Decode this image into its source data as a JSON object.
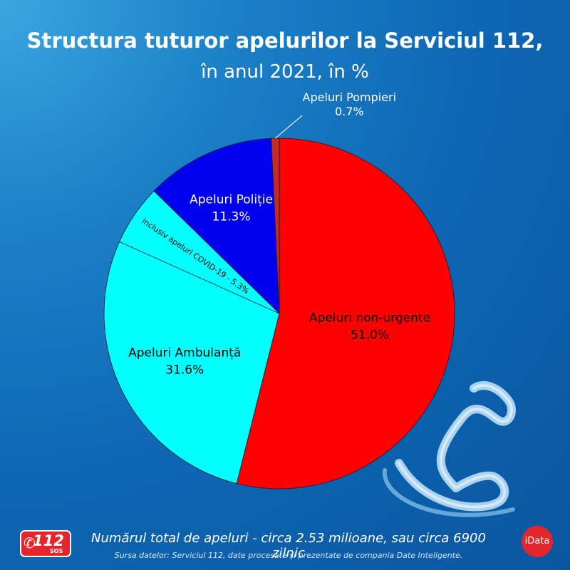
{
  "title_line1": "Structura tuturor apelurilor la Serviciul 112,",
  "title_line2": "în anul 2021, în %",
  "chart_data": {
    "type": "pie",
    "slices": [
      {
        "label": "Apeluri non-urgente",
        "value": 51.0,
        "value_label": "51.0%",
        "color": "#ff0000",
        "text_color": "#000000"
      },
      {
        "label": "Apeluri Ambulanță",
        "value": 31.6,
        "value_label": "31.6%",
        "color": "#00ffff",
        "text_color": "#000000"
      },
      {
        "label": "Apeluri Poliție",
        "value": 11.3,
        "value_label": "11.3%",
        "color": "#0000ee",
        "text_color": "#ffffff"
      },
      {
        "label": "Apeluri Pompieri",
        "value": 0.7,
        "value_label": "0.7%",
        "color": "#c22a2a",
        "text_color": "#ffffff"
      }
    ],
    "sub_segment": {
      "label": "inclusiv apeluri COVID-19 - 5.3%",
      "value": 5.3,
      "within": "Apeluri Ambulanță"
    }
  },
  "footer": {
    "total_text": "Numărul total de apeluri - circa 2.53 milioane, sau circa 6900 zilnic",
    "source_text": "Sursa datelor: Serviciul 112, date procesate și prezentate de compania Date Inteligente."
  },
  "logos": {
    "logo_112_number": "112",
    "logo_112_sub": "SOS",
    "idata_text": "iData"
  },
  "decor": {
    "icon": "phone-handset-icon"
  }
}
